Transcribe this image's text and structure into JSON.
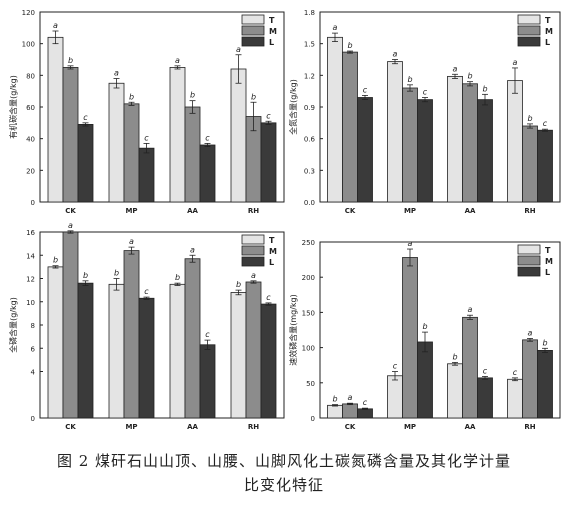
{
  "caption": {
    "line1": "图 2    煤矸石山山顶、山腰、山脚风化土碳氮磷含量及其化学计量",
    "line2": "比变化特征"
  },
  "colors": {
    "T": "#e4e4e4",
    "M": "#8c8c8c",
    "L": "#3a3a3a",
    "axis": "#222222"
  },
  "chart_data": [
    {
      "type": "bar",
      "ylabel": "有机碳含量(g/kg)",
      "ylim": [
        0,
        120
      ],
      "yticks": [
        0,
        20,
        40,
        60,
        80,
        100,
        120
      ],
      "categories": [
        "CK",
        "MP",
        "AA",
        "RH"
      ],
      "legend_position": "top-right",
      "series": [
        {
          "name": "T",
          "values": [
            104,
            75,
            85,
            84
          ],
          "errors": [
            4,
            3,
            1,
            9
          ],
          "letters": [
            "a",
            "a",
            "a",
            "a"
          ]
        },
        {
          "name": "M",
          "values": [
            85,
            62,
            60,
            54
          ],
          "errors": [
            1,
            1,
            4,
            9
          ],
          "letters": [
            "b",
            "b",
            "b",
            "b"
          ]
        },
        {
          "name": "L",
          "values": [
            49,
            34,
            36,
            50
          ],
          "errors": [
            1,
            3,
            1,
            1
          ],
          "letters": [
            "c",
            "c",
            "c",
            "c"
          ]
        }
      ]
    },
    {
      "type": "bar",
      "ylabel": "全氮含量(g/kg)",
      "ylim": [
        0,
        1.8
      ],
      "yticks": [
        0.0,
        0.3,
        0.6,
        0.9,
        1.2,
        1.5,
        1.8
      ],
      "categories": [
        "CK",
        "MP",
        "AA",
        "RH"
      ],
      "legend_position": "top-right",
      "series": [
        {
          "name": "T",
          "values": [
            1.56,
            1.33,
            1.19,
            1.15
          ],
          "errors": [
            0.04,
            0.02,
            0.02,
            0.12
          ],
          "letters": [
            "a",
            "a",
            "a",
            "a"
          ]
        },
        {
          "name": "M",
          "values": [
            1.42,
            1.08,
            1.12,
            0.72
          ],
          "errors": [
            0.01,
            0.03,
            0.02,
            0.02
          ],
          "letters": [
            "b",
            "b",
            "b",
            "b"
          ]
        },
        {
          "name": "L",
          "values": [
            0.99,
            0.97,
            0.97,
            0.68
          ],
          "errors": [
            0.02,
            0.02,
            0.05,
            0.01
          ],
          "letters": [
            "c",
            "c",
            "b",
            "c"
          ]
        }
      ]
    },
    {
      "type": "bar",
      "ylabel": "全磷含量(g/kg)",
      "ylim": [
        0,
        16
      ],
      "yticks": [
        0,
        4,
        6,
        8,
        10,
        12,
        14,
        16
      ],
      "categories": [
        "CK",
        "MP",
        "AA",
        "RH"
      ],
      "legend_position": "top-right",
      "series": [
        {
          "name": "T",
          "values": [
            13.0,
            11.5,
            11.5,
            10.8
          ],
          "errors": [
            0.1,
            0.5,
            0.1,
            0.2
          ],
          "letters": [
            "b",
            "b",
            "b",
            "b"
          ]
        },
        {
          "name": "M",
          "values": [
            16.0,
            14.4,
            13.7,
            11.7
          ],
          "errors": [
            0.1,
            0.3,
            0.3,
            0.1
          ],
          "letters": [
            "a",
            "a",
            "a",
            "a"
          ]
        },
        {
          "name": "L",
          "values": [
            11.6,
            10.3,
            6.3,
            9.8
          ],
          "errors": [
            0.2,
            0.1,
            0.4,
            0.1
          ],
          "letters": [
            "b",
            "c",
            "c",
            "c"
          ]
        }
      ]
    },
    {
      "type": "bar",
      "ylabel": "速效磷含量(mg/kg)",
      "ylim": [
        0,
        250
      ],
      "yticks": [
        0,
        50,
        100,
        150,
        200,
        250
      ],
      "categories": [
        "CK",
        "MP",
        "AA",
        "RH"
      ],
      "legend_position": "top-right",
      "series": [
        {
          "name": "T",
          "values": [
            18,
            60,
            77,
            55
          ],
          "errors": [
            1,
            6,
            2,
            2
          ],
          "letters": [
            "b",
            "c",
            "b",
            "c"
          ]
        },
        {
          "name": "M",
          "values": [
            20,
            228,
            143,
            111
          ],
          "errors": [
            1,
            12,
            3,
            2
          ],
          "letters": [
            "a",
            "a",
            "a",
            "a"
          ]
        },
        {
          "name": "L",
          "values": [
            13,
            108,
            57,
            96
          ],
          "errors": [
            1,
            14,
            2,
            3
          ],
          "letters": [
            "c",
            "b",
            "c",
            "b"
          ]
        }
      ]
    }
  ]
}
